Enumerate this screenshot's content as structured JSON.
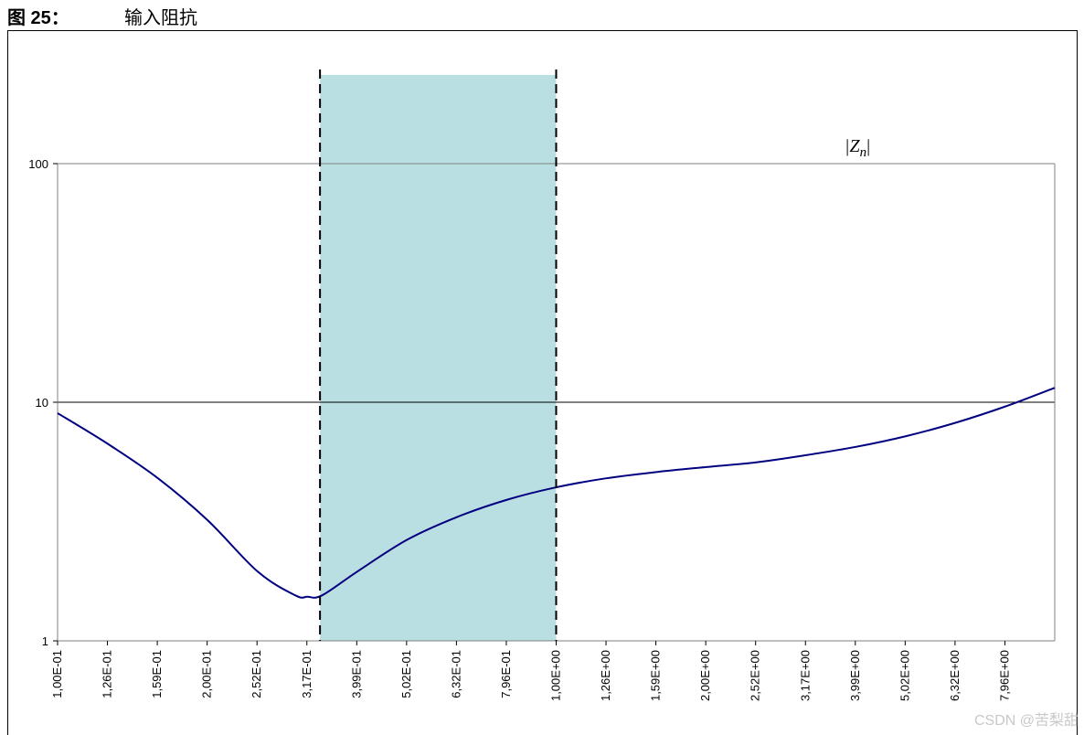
{
  "figure": {
    "label": "图 25：",
    "title": "输入阻抗"
  },
  "watermark": "CSDN @苦梨甜",
  "chart_data": {
    "type": "line",
    "series": [
      {
        "name": "|Zn|",
        "color": "#000080",
        "x": [
          0.1,
          0.126,
          0.159,
          0.2,
          0.252,
          0.3,
          0.317,
          0.339,
          0.399,
          0.502,
          0.632,
          0.796,
          1.0,
          1.26,
          1.59,
          2.0,
          2.52,
          3.17,
          3.99,
          5.02,
          6.32,
          7.96,
          10.0
        ],
        "y": [
          9.0,
          6.7,
          4.8,
          3.2,
          1.95,
          1.55,
          1.53,
          1.55,
          1.95,
          2.65,
          3.3,
          3.9,
          4.4,
          4.8,
          5.1,
          5.35,
          5.6,
          6.0,
          6.5,
          7.2,
          8.2,
          9.6,
          11.5
        ]
      }
    ],
    "x_tick_labels": [
      "1,00E-01",
      "1,26E-01",
      "1,59E-01",
      "2,00E-01",
      "2,52E-01",
      "3,17E-01",
      "3,99E-01",
      "5,02E-01",
      "6,32E-01",
      "7,96E-01",
      "1,00E+00",
      "1,26E+00",
      "1,59E+00",
      "2,00E+00",
      "2,52E+00",
      "3,17E+00",
      "3,99E+00",
      "5,02E+00",
      "6,32E+00",
      "7,96E+00"
    ],
    "y_tick_labels": [
      "1",
      "10",
      "100"
    ],
    "y_ticks": [
      1,
      10,
      100
    ],
    "xlim": [
      0.1,
      10.0
    ],
    "ylim": [
      1,
      100
    ],
    "xscale": "log",
    "yscale": "log",
    "grid": "horizontal",
    "highlight_band": {
      "x_range": [
        0.336,
        1.0
      ],
      "color": "#b9dfe2",
      "boundary_style": "dashed"
    },
    "annotation_series_label": {
      "text": "|Z",
      "subscript": "n",
      "suffix": "|"
    }
  }
}
